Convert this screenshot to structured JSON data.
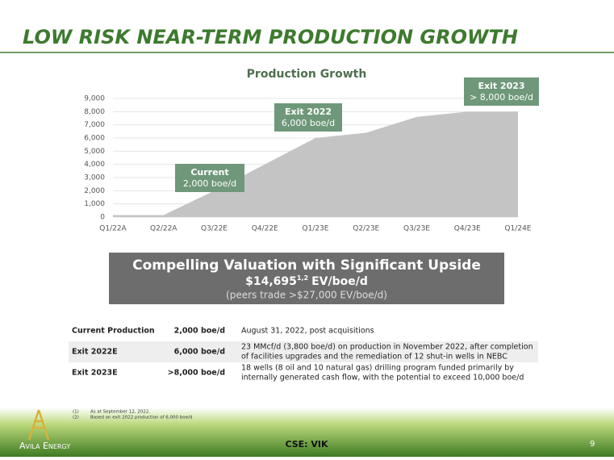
{
  "header": {
    "title": "LOW RISK NEAR-TERM PRODUCTION GROWTH"
  },
  "chart_data": {
    "type": "area",
    "title": "Production Growth",
    "categories": [
      "Q1/22A",
      "Q2/22A",
      "Q3/22E",
      "Q4/22E",
      "Q1/23E",
      "Q2/23E",
      "Q3/23E",
      "Q4/23E",
      "Q1/24E"
    ],
    "values": [
      150,
      150,
      2000,
      4000,
      6000,
      6400,
      7600,
      8000,
      8000
    ],
    "color": "#c4c4c4",
    "ylim": [
      0,
      9000
    ],
    "yticks": [
      0,
      {
        "value": 1000,
        "label": "1,000"
      },
      {
        "value": 2000,
        "label": "2,000"
      },
      {
        "value": 3000,
        "label": "3,000"
      },
      {
        "value": 4000,
        "label": "4,000"
      },
      {
        "value": 5000,
        "label": "5,000"
      },
      {
        "value": 6000,
        "label": "6,000"
      },
      {
        "value": 7000,
        "label": "7,000"
      },
      {
        "value": 8000,
        "label": "8,000"
      },
      {
        "value": 9000,
        "label": "9,000"
      }
    ],
    "grid": true,
    "annotations": [
      {
        "title": "Current",
        "text": "2,000 boe/d"
      },
      {
        "title": "Exit 2022",
        "text": "6,000 boe/d"
      },
      {
        "title": "Exit 2023",
        "text": "> 8,000 boe/d"
      }
    ]
  },
  "valuation": {
    "title": "Compelling Valuation with Significant Upside",
    "value": "$14,695",
    "sup": "1,2",
    "unit": "EV/boe/d",
    "note": "(peers trade >$27,000 EV/boe/d)"
  },
  "table": {
    "rows": [
      [
        "Current Production",
        "2,000 boe/d",
        "August 31, 2022, post acquisitions"
      ],
      [
        "Exit 2022E",
        "6,000 boe/d",
        "23 MMcf/d (3,800 boe/d) on production in November 2022, after completion",
        "of facilities upgrades and the remediation of 12 shut-in wells in NEBC"
      ],
      [
        "Exit 2023E",
        ">8,000 boe/d",
        "18 wells (8 oil and 10 natural gas) drilling program funded primarily by",
        "internally generated cash flow, with the potential to exceed 10,000 boe/d"
      ]
    ]
  },
  "footnotes": [
    {
      "marker": "(1)",
      "text": "As at September 12, 2022."
    },
    {
      "marker": "(2)",
      "text": "Based on exit 2022 production of 6,000 boe/d"
    }
  ],
  "footer": {
    "company": "Avila Energy",
    "ticker": "CSE: VIK",
    "page": "9"
  }
}
